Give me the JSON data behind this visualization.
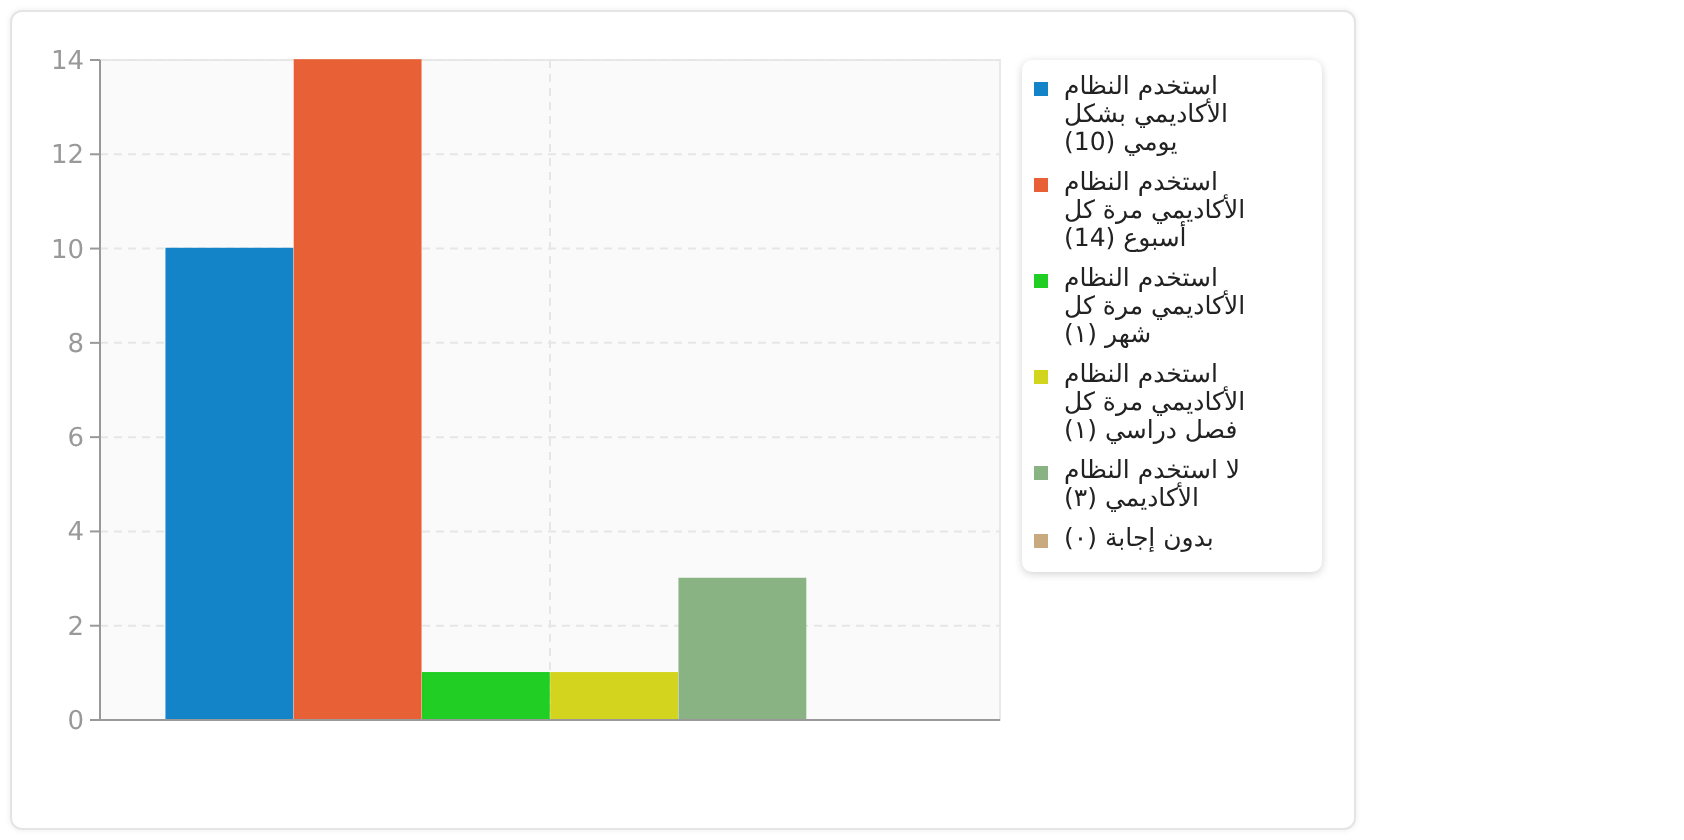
{
  "chart_data": {
    "type": "bar",
    "categories": [
      null
    ],
    "series": [
      {
        "name": "استخدم النظام الأكاديمي بشكل يومي (10)",
        "color": "#1484c9",
        "values": [
          10
        ]
      },
      {
        "name": "استخدم النظام الأكاديمي مرة كل أسبوع (14)",
        "color": "#e86035",
        "values": [
          14
        ]
      },
      {
        "name": "استخدم النظام الأكاديمي مرة كل شهر (١)",
        "color": "#20ce24",
        "values": [
          1
        ]
      },
      {
        "name": "استخدم النظام الأكاديمي مرة كل فصل دراسي (١)",
        "color": "#d3d41e",
        "values": [
          1
        ]
      },
      {
        "name": "لا استخدم النظام الأكاديمي (٣)",
        "color": "#8ab383",
        "values": [
          3
        ]
      },
      {
        "name": "بدون إجابة (٠)",
        "color": "#c9aa7e",
        "values": [
          0
        ]
      }
    ],
    "ylim": [
      0,
      14
    ],
    "yticks": [
      0,
      2,
      4,
      6,
      8,
      10,
      12,
      14
    ],
    "grid": true,
    "legend": "right"
  }
}
